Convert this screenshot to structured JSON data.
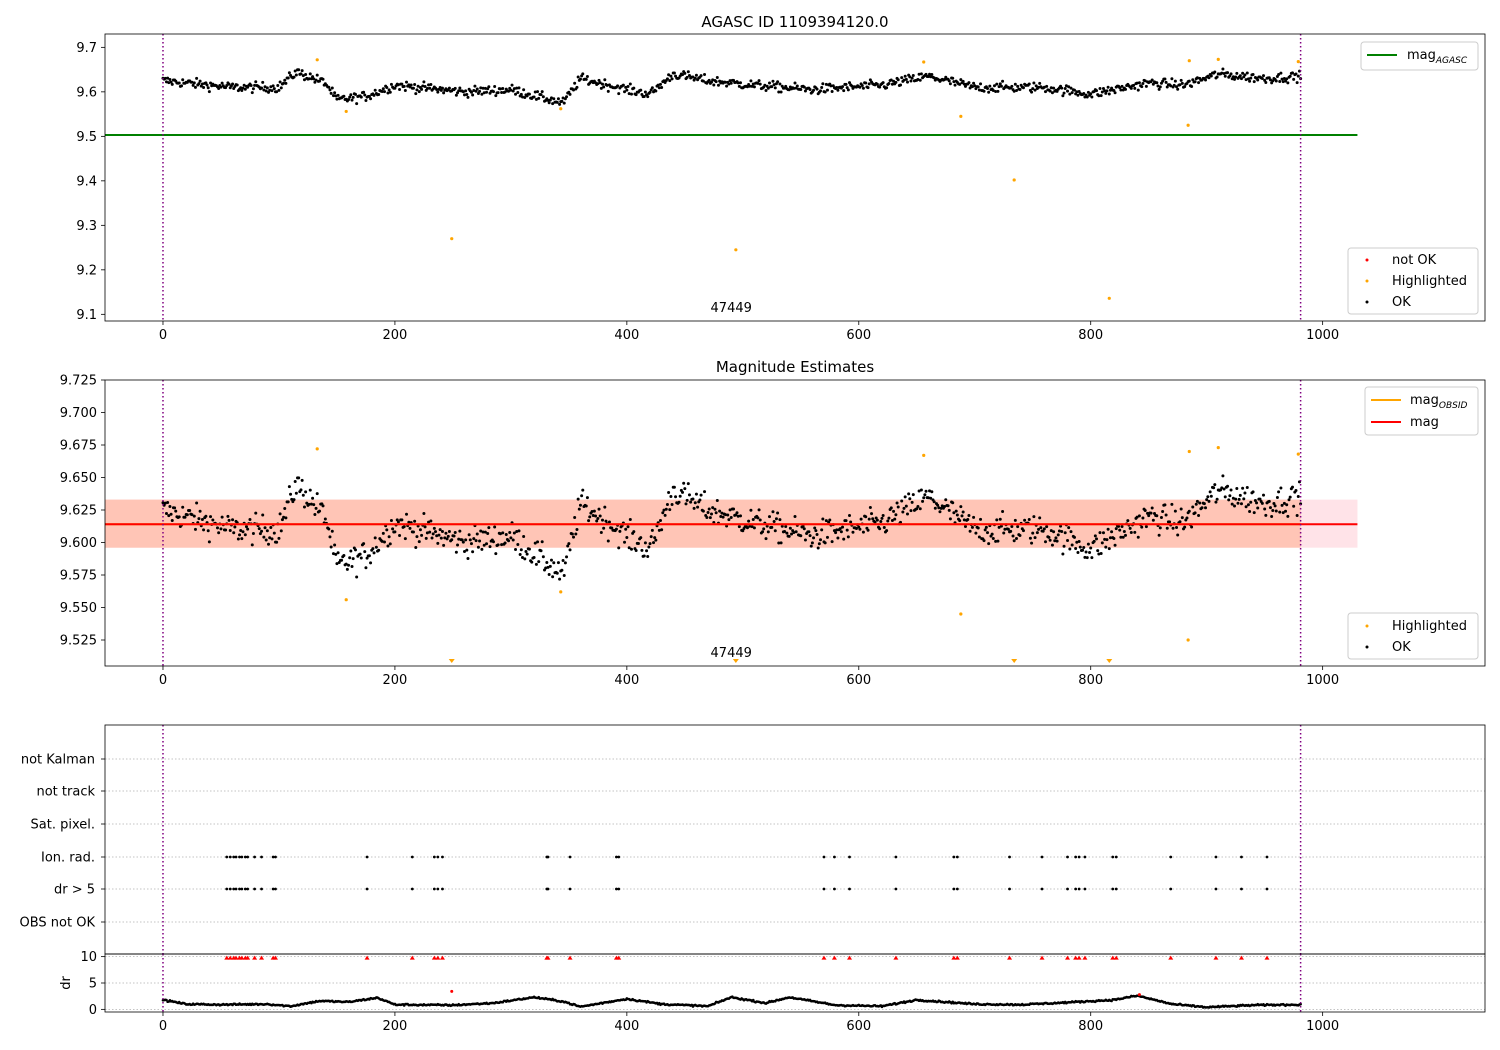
{
  "chart_data": [
    {
      "type": "scatter",
      "title": "AGASC ID 1109394120.0",
      "xlabel": "",
      "ylabel": "",
      "xlim": [
        -50,
        1140
      ],
      "ylim": [
        9.085,
        9.73
      ],
      "xticks": [
        0,
        200,
        400,
        600,
        800,
        1000
      ],
      "xtick_labels": [
        "0",
        "200",
        "400",
        "600",
        "800",
        "1000"
      ],
      "yticks": [
        9.1,
        9.2,
        9.3,
        9.4,
        9.5,
        9.6,
        9.7
      ],
      "ytick_labels": [
        "9.1",
        "9.2",
        "9.3",
        "9.4",
        "9.5",
        "9.6",
        "9.7"
      ],
      "vlines": [
        0,
        981
      ],
      "obsid_annotation": {
        "text": "47449",
        "x": 490
      },
      "mag_agasc": {
        "value": 9.503,
        "x_range": [
          -50,
          1030
        ]
      },
      "series_ok_trend": [
        {
          "x": 0,
          "y": 9.625
        },
        {
          "x": 60,
          "y": 9.61
        },
        {
          "x": 100,
          "y": 9.61
        },
        {
          "x": 115,
          "y": 9.645
        },
        {
          "x": 140,
          "y": 9.62
        },
        {
          "x": 150,
          "y": 9.582
        },
        {
          "x": 175,
          "y": 9.59
        },
        {
          "x": 200,
          "y": 9.615
        },
        {
          "x": 260,
          "y": 9.6
        },
        {
          "x": 300,
          "y": 9.605
        },
        {
          "x": 330,
          "y": 9.585
        },
        {
          "x": 345,
          "y": 9.575
        },
        {
          "x": 360,
          "y": 9.63
        },
        {
          "x": 400,
          "y": 9.605
        },
        {
          "x": 420,
          "y": 9.595
        },
        {
          "x": 440,
          "y": 9.64
        },
        {
          "x": 470,
          "y": 9.625
        },
        {
          "x": 510,
          "y": 9.615
        },
        {
          "x": 560,
          "y": 9.605
        },
        {
          "x": 620,
          "y": 9.615
        },
        {
          "x": 660,
          "y": 9.635
        },
        {
          "x": 700,
          "y": 9.61
        },
        {
          "x": 760,
          "y": 9.61
        },
        {
          "x": 800,
          "y": 9.595
        },
        {
          "x": 850,
          "y": 9.62
        },
        {
          "x": 880,
          "y": 9.615
        },
        {
          "x": 910,
          "y": 9.64
        },
        {
          "x": 950,
          "y": 9.63
        },
        {
          "x": 981,
          "y": 9.635
        }
      ],
      "highlighted_points": [
        {
          "x": 133,
          "y": 9.672
        },
        {
          "x": 158,
          "y": 9.556
        },
        {
          "x": 249,
          "y": 9.27
        },
        {
          "x": 343,
          "y": 9.562
        },
        {
          "x": 494,
          "y": 9.245
        },
        {
          "x": 656,
          "y": 9.667
        },
        {
          "x": 688,
          "y": 9.545
        },
        {
          "x": 734,
          "y": 9.402
        },
        {
          "x": 816,
          "y": 9.136
        },
        {
          "x": 884,
          "y": 9.525
        },
        {
          "x": 885,
          "y": 9.67
        },
        {
          "x": 910,
          "y": 9.673
        },
        {
          "x": 979,
          "y": 9.668
        }
      ],
      "legend_lines": [
        {
          "label": "mag",
          "subscript": "AGASC",
          "color": "#008000"
        }
      ],
      "legend_points": [
        {
          "label": "not OK",
          "color": "#ff0000"
        },
        {
          "label": "Highlighted",
          "color": "#ffa500"
        },
        {
          "label": "OK",
          "color": "#000000"
        }
      ]
    },
    {
      "type": "scatter",
      "title": "Magnitude Estimates",
      "xlabel": "",
      "ylabel": "",
      "xlim": [
        -50,
        1140
      ],
      "ylim": [
        9.505,
        9.725
      ],
      "xticks": [
        0,
        200,
        400,
        600,
        800,
        1000
      ],
      "xtick_labels": [
        "0",
        "200",
        "400",
        "600",
        "800",
        "1000"
      ],
      "yticks": [
        9.525,
        9.55,
        9.575,
        9.6,
        9.625,
        9.65,
        9.675,
        9.7,
        9.725
      ],
      "ytick_labels": [
        "9.525",
        "9.550",
        "9.575",
        "9.600",
        "9.625",
        "9.650",
        "9.675",
        "9.700",
        "9.725"
      ],
      "vlines": [
        0,
        981
      ],
      "obsid_annotation": {
        "text": "47449",
        "x": 490
      },
      "mag": {
        "value": 9.614,
        "x_range": [
          -50,
          1030
        ],
        "band": [
          9.596,
          9.633
        ],
        "obsid_band_x": [
          -50,
          981
        ]
      },
      "highlighted_points": [
        {
          "x": 133,
          "y": 9.672
        },
        {
          "x": 158,
          "y": 9.556
        },
        {
          "x": 343,
          "y": 9.562
        },
        {
          "x": 656,
          "y": 9.667
        },
        {
          "x": 688,
          "y": 9.545
        },
        {
          "x": 884,
          "y": 9.525
        },
        {
          "x": 885,
          "y": 9.67
        },
        {
          "x": 910,
          "y": 9.673
        },
        {
          "x": 979,
          "y": 9.668
        }
      ],
      "below_range_markers": [
        249,
        494,
        734,
        816
      ],
      "legend_lines": [
        {
          "label": "mag",
          "subscript": "OBSID",
          "color": "#ffa500"
        },
        {
          "label": "mag",
          "subscript": "",
          "color": "#ff0000"
        }
      ],
      "legend_points": [
        {
          "label": "Highlighted",
          "color": "#ffa500"
        },
        {
          "label": "OK",
          "color": "#000000"
        }
      ]
    },
    {
      "type": "scatter",
      "title": "",
      "xlabel": "",
      "ylabel": "",
      "xlim": [
        -50,
        1140
      ],
      "categories": [
        "OBS not OK",
        "dr > 5",
        "Ion. rad.",
        "Sat. pixel.",
        "not track",
        "not Kalman"
      ],
      "flag_times": [
        55,
        58,
        61,
        63,
        66,
        68,
        71,
        73,
        79,
        85,
        95,
        97,
        176,
        215,
        234,
        237,
        241,
        331,
        332,
        351,
        391,
        393,
        570,
        579,
        592,
        632,
        682,
        685,
        730,
        758,
        780,
        787,
        790,
        795,
        819,
        822,
        869,
        908,
        930,
        952
      ],
      "flag_categories": [
        "dr > 5",
        "Ion. rad."
      ],
      "vlines": [
        0,
        981
      ]
    },
    {
      "type": "line",
      "title": "",
      "xlabel": "",
      "ylabel": "dr",
      "xlim": [
        -50,
        1140
      ],
      "ylim": [
        -0.5,
        10.5
      ],
      "xticks": [
        0,
        200,
        400,
        600,
        800,
        1000
      ],
      "xtick_labels": [
        "0",
        "200",
        "400",
        "600",
        "800",
        "1000"
      ],
      "yticks": [
        0,
        5,
        10
      ],
      "ytick_labels": [
        "0",
        "5",
        "10"
      ],
      "ygrid": [
        0,
        5,
        10
      ],
      "vlines": [
        0,
        981
      ],
      "dr_trend": [
        {
          "x": 0,
          "y": 1.8
        },
        {
          "x": 20,
          "y": 1.0
        },
        {
          "x": 50,
          "y": 0.9
        },
        {
          "x": 90,
          "y": 1.0
        },
        {
          "x": 110,
          "y": 0.6
        },
        {
          "x": 135,
          "y": 1.6
        },
        {
          "x": 160,
          "y": 1.4
        },
        {
          "x": 185,
          "y": 2.2
        },
        {
          "x": 200,
          "y": 0.9
        },
        {
          "x": 250,
          "y": 0.8
        },
        {
          "x": 285,
          "y": 1.2
        },
        {
          "x": 320,
          "y": 2.3
        },
        {
          "x": 345,
          "y": 1.5
        },
        {
          "x": 360,
          "y": 0.5
        },
        {
          "x": 400,
          "y": 2.0
        },
        {
          "x": 430,
          "y": 1.0
        },
        {
          "x": 470,
          "y": 0.6
        },
        {
          "x": 490,
          "y": 2.3
        },
        {
          "x": 520,
          "y": 1.2
        },
        {
          "x": 540,
          "y": 2.3
        },
        {
          "x": 580,
          "y": 0.8
        },
        {
          "x": 620,
          "y": 0.6
        },
        {
          "x": 650,
          "y": 1.8
        },
        {
          "x": 700,
          "y": 1.0
        },
        {
          "x": 740,
          "y": 0.9
        },
        {
          "x": 770,
          "y": 1.2
        },
        {
          "x": 820,
          "y": 1.8
        },
        {
          "x": 840,
          "y": 2.6
        },
        {
          "x": 870,
          "y": 1.0
        },
        {
          "x": 900,
          "y": 0.4
        },
        {
          "x": 940,
          "y": 0.8
        },
        {
          "x": 981,
          "y": 0.9
        }
      ],
      "dr_outliers": [
        {
          "x": 249,
          "y": 3.4
        },
        {
          "x": 842,
          "y": 2.8
        }
      ],
      "over_range_times": [
        55,
        58,
        61,
        63,
        66,
        68,
        71,
        73,
        79,
        85,
        95,
        97,
        176,
        215,
        234,
        237,
        241,
        331,
        332,
        351,
        391,
        393,
        570,
        579,
        592,
        632,
        682,
        685,
        730,
        758,
        780,
        787,
        790,
        795,
        819,
        822,
        869,
        908,
        930,
        952
      ]
    }
  ]
}
